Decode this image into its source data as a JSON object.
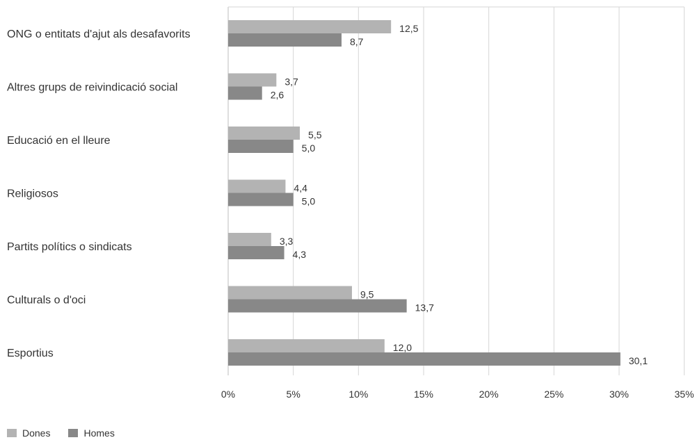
{
  "chart_data": {
    "type": "bar",
    "orientation": "horizontal",
    "categories": [
      "ONG o entitats d'ajut als desafavorits",
      "Altres grups de reivindicació social",
      "Educació en el lleure",
      "Religiosos",
      "Partits polítics o sindicats",
      "Culturals o d'oci",
      "Esportius"
    ],
    "series": [
      {
        "name": "Dones",
        "color": "#b3b3b3",
        "values": [
          12.5,
          3.7,
          5.5,
          4.4,
          3.3,
          9.5,
          12.0
        ],
        "labels": [
          "12,5",
          "3,7",
          "5,5",
          "4,4",
          "3,3",
          "9,5",
          "12,0"
        ]
      },
      {
        "name": "Homes",
        "color": "#888888",
        "values": [
          8.7,
          2.6,
          5.0,
          5.0,
          4.3,
          13.7,
          30.1
        ],
        "labels": [
          "8,7",
          "2,6",
          "5,0",
          "5,0",
          "4,3",
          "13,7",
          "30,1"
        ]
      }
    ],
    "xlim": [
      0,
      35
    ],
    "xticks": [
      0,
      5,
      10,
      15,
      20,
      25,
      30,
      35
    ],
    "xtick_labels": [
      "0%",
      "5%",
      "10%",
      "15%",
      "20%",
      "25%",
      "30%",
      "35%"
    ],
    "grid": "vertical",
    "legend_position": "bottom-left"
  }
}
